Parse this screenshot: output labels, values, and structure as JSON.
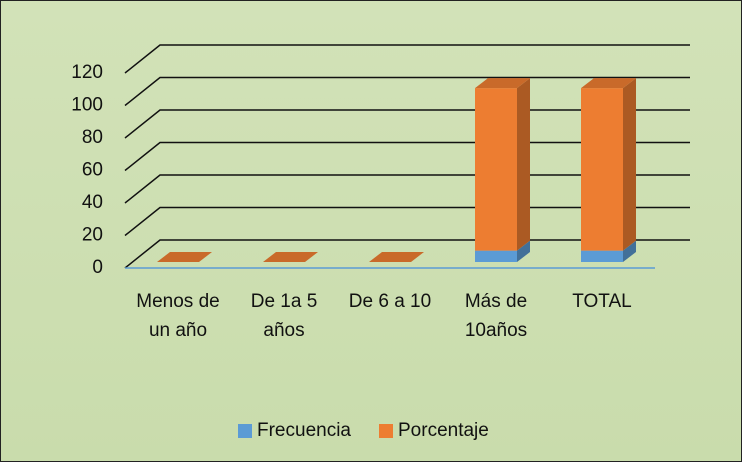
{
  "chart_data": {
    "type": "bar3d_stacked",
    "categories": [
      "Menos de un año",
      "De 1a 5 años",
      "De 6 a 10",
      "Más de 10años",
      "TOTAL"
    ],
    "series": [
      {
        "name": "Frecuencia",
        "color": "#5b9bd5",
        "values": [
          0,
          0,
          0,
          7,
          7
        ]
      },
      {
        "name": "Porcentaje",
        "color": "#ed7d31",
        "values": [
          0,
          0,
          0,
          100,
          100
        ]
      }
    ],
    "ylim": [
      0,
      120
    ],
    "yticks": [
      0,
      20,
      40,
      60,
      80,
      100,
      120
    ],
    "grid": true,
    "legend": "bottom"
  }
}
